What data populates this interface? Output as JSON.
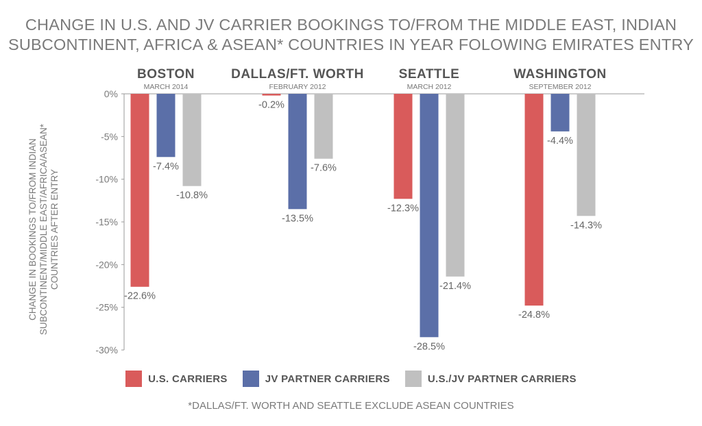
{
  "title_lines": [
    "CHANGE IN U.S. AND JV CARRIER BOOKINGS TO/FROM THE MIDDLE EAST, INDIAN",
    "SUBCONTINENT, AFRICA & ASEAN* COUNTRIES IN YEAR FOLOWING EMIRATES ENTRY"
  ],
  "ylabel_lines": [
    "CHANGE IN BOOKINGS TO/FROM INDIAN",
    "SUBCONTINENT/MIDDLE EAST/AFRICA/ASEAN*",
    "COUNTRIES AFTER ENTRY"
  ],
  "footnote": "*DALLAS/FT. WORTH AND SEATTLE EXCLUDE ASEAN COUNTRIES",
  "colors": {
    "us": "#d95b5b",
    "jv": "#5b6fa8",
    "usjv": "#c0c0c0"
  },
  "chart_data": {
    "type": "bar",
    "ylim": [
      -30,
      0
    ],
    "yticks": [
      0,
      -5,
      -10,
      -15,
      -20,
      -25,
      -30
    ],
    "ytick_labels": [
      "0%",
      "-5%",
      "-10%",
      "-15%",
      "-20%",
      "-25%",
      "-30%"
    ],
    "categories": [
      {
        "name": "BOSTON",
        "sub": "MARCH 2014"
      },
      {
        "name": "DALLAS/FT. WORTH",
        "sub": "FEBRUARY 2012"
      },
      {
        "name": "SEATTLE",
        "sub": "MARCH 2012"
      },
      {
        "name": "WASHINGTON",
        "sub": "SEPTEMBER 2012"
      }
    ],
    "series": [
      {
        "name": "U.S. CARRIERS",
        "key": "us",
        "values": [
          -22.6,
          -0.2,
          -12.3,
          -24.8
        ],
        "labels": [
          "-22.6%",
          "-0.2%",
          "-12.3%",
          "-24.8%"
        ]
      },
      {
        "name": "JV PARTNER CARRIERS",
        "key": "jv",
        "values": [
          -7.4,
          -13.5,
          -28.5,
          -4.4
        ],
        "labels": [
          "-7.4%",
          "-13.5%",
          "-28.5%",
          "-4.4%"
        ]
      },
      {
        "name": "U.S./JV PARTNER CARRIERS",
        "key": "usjv",
        "values": [
          -10.8,
          -7.6,
          -21.4,
          -14.3
        ],
        "labels": [
          "-10.8%",
          "-7.6%",
          "-21.4%",
          "-14.3%"
        ]
      }
    ]
  },
  "legend": [
    {
      "label": "U.S. CARRIERS",
      "color_key": "us"
    },
    {
      "label": "JV PARTNER CARRIERS",
      "color_key": "jv"
    },
    {
      "label": "U.S./JV PARTNER CARRIERS",
      "color_key": "usjv"
    }
  ]
}
